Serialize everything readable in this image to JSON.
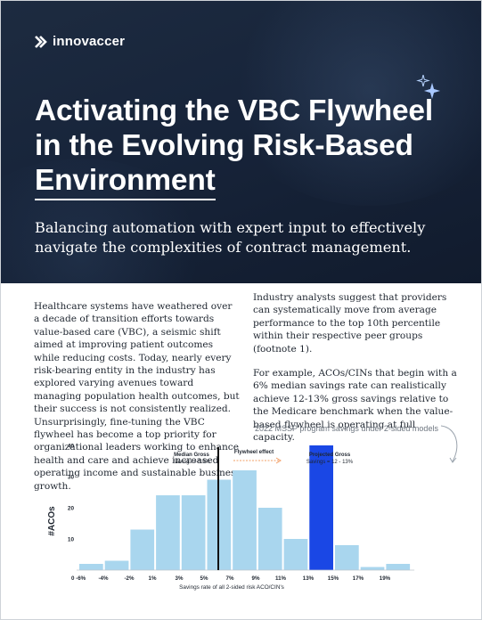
{
  "brand": {
    "name": "innovaccer"
  },
  "hero": {
    "title_lines": [
      "Activating the VBC Flywheel",
      "in the Evolving Risk-Based",
      "Environment"
    ],
    "subtitle": "Balancing automation with expert input to effectively navigate the complexities of contract management."
  },
  "body": {
    "left": "Healthcare systems have weathered over a decade of transition efforts towards value-based care (VBC), a seismic shift aimed at improving patient outcomes while reducing costs. Today, nearly every risk-bearing entity in the industry has explored varying avenues toward managing population health outcomes, but their success is not consistently realized. Unsurprisingly, fine-tuning the VBC flywheel has become a top priority for organizational leaders working to enhance health and care and achieve increased operating income and sustainable business growth.",
    "right_p1": "Industry analysts suggest that providers can systematically move from average performance to the top 10th percentile within their respective peer groups (footnote 1).",
    "right_p2": "For example, ACOs/CINs that begin with a 6% median savings rate can realistically achieve 12-13% gross savings relative to the Medicare benchmark when the value-based flywheel is operating at full capacity."
  },
  "colors": {
    "hero_bg": "#17243a",
    "bar": "#a9d6ee",
    "highlight_bar": "#1a47e5",
    "median_line": "#111111",
    "flywheel_arrow": "#f29f66"
  },
  "icons": {
    "logo": "innovaccer-chevron-logo",
    "sparkle": "sparkle-icon"
  },
  "chart_data": {
    "type": "bar",
    "title": "2022 MSSP program savings under 2-sided models",
    "xlabel": "Savings rate of all 2-sided risk ACO/CIN's",
    "ylabel": "#ACOs",
    "ylim": [
      0,
      40
    ],
    "yticks": [
      "10",
      "20",
      "30",
      "40"
    ],
    "xtick_labels": [
      "0 -6%",
      "-4%",
      "-2%",
      "1%",
      "3%",
      "5%",
      "7%",
      "9%",
      "11%",
      "13%",
      "15%",
      "17%",
      "19%"
    ],
    "values": [
      2,
      3,
      13,
      24,
      24,
      29,
      32,
      20,
      10,
      40,
      8,
      1,
      2
    ],
    "highlight_index": 9,
    "annotations": {
      "median": "Median Gross Savings = 5.9%",
      "flywheel": "Flywheel effect",
      "projected": "Projected Gross Savings = 12 - 13%"
    },
    "grid": false,
    "legend": "none"
  }
}
